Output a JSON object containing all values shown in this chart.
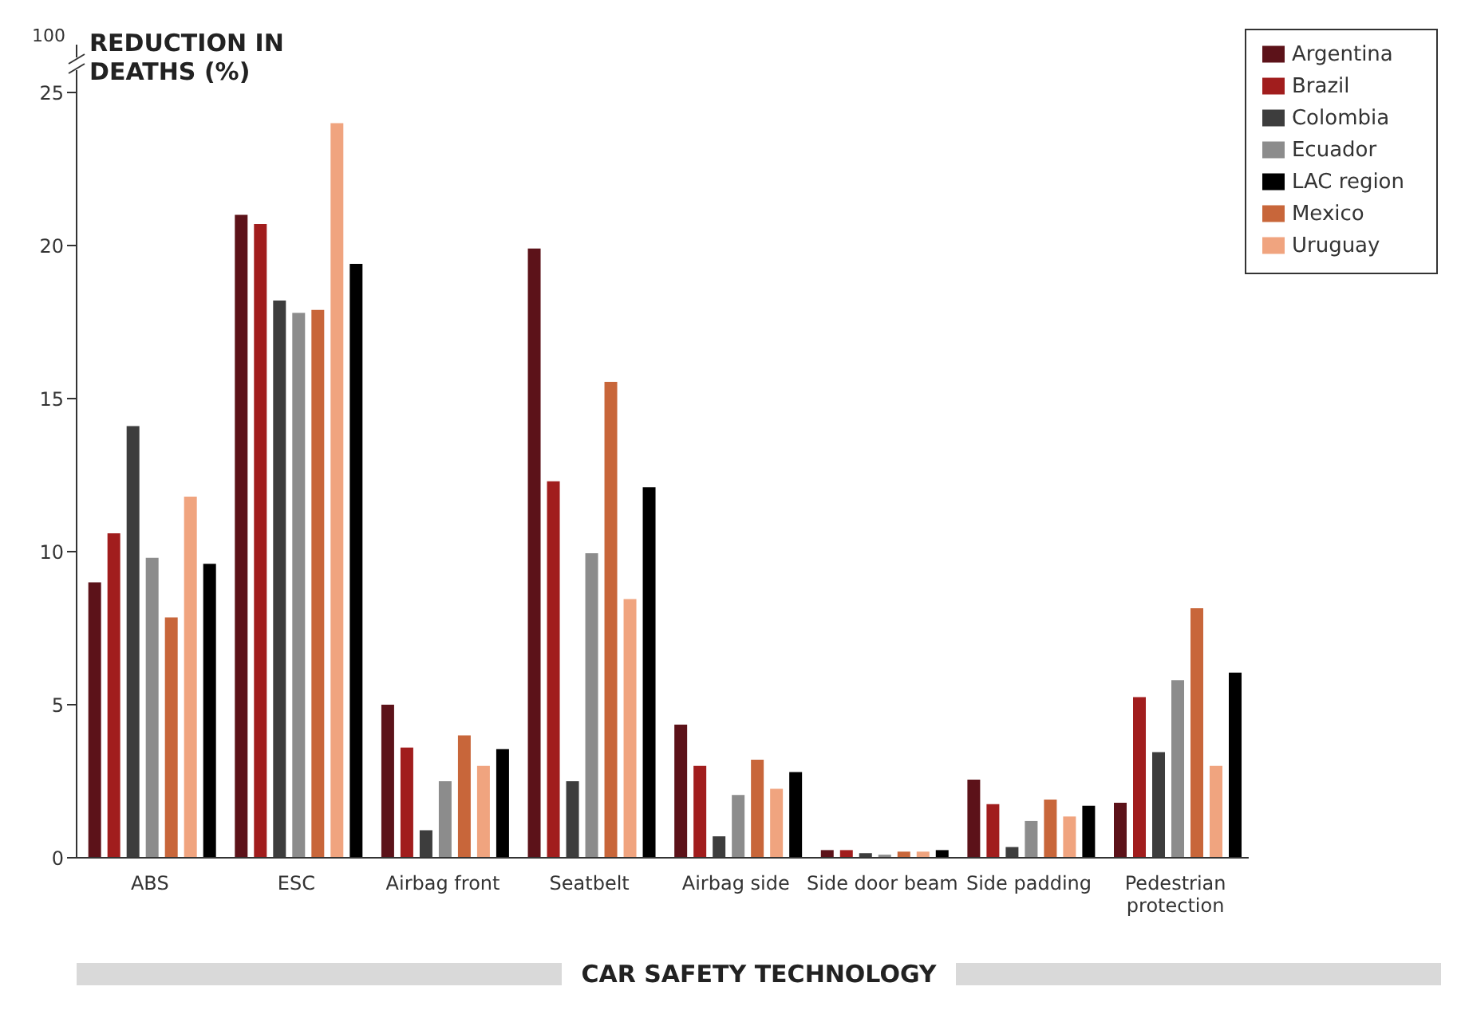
{
  "chart_data": {
    "type": "bar",
    "ylabel": "REDUCTION IN DEATHS (%)",
    "xlabel": "CAR SAFETY TECHNOLOGY",
    "categories": [
      "ABS",
      "ESC",
      "Airbag front",
      "Seatbelt",
      "Airbag side",
      "Side door beam",
      "Side padding",
      "Pedestrian protection"
    ],
    "series": [
      {
        "name": "Argentina",
        "color": "#5c1219",
        "values": [
          9.0,
          21.0,
          5.0,
          19.9,
          4.35,
          0.25,
          2.55,
          1.8
        ]
      },
      {
        "name": "Brazil",
        "color": "#a11d1d",
        "values": [
          10.6,
          20.7,
          3.6,
          12.3,
          3.0,
          0.25,
          1.75,
          5.25
        ]
      },
      {
        "name": "Colombia",
        "color": "#3d3d3d",
        "values": [
          14.1,
          18.2,
          0.9,
          2.5,
          0.7,
          0.15,
          0.35,
          3.45
        ]
      },
      {
        "name": "Ecuador",
        "color": "#8c8c8c",
        "values": [
          9.8,
          17.8,
          2.5,
          9.95,
          2.05,
          0.1,
          1.2,
          5.8
        ]
      },
      {
        "name": "Mexico",
        "color": "#c8663a",
        "values": [
          7.85,
          17.9,
          4.0,
          15.55,
          3.2,
          0.2,
          1.9,
          8.15
        ]
      },
      {
        "name": "Uruguay",
        "color": "#f0a47f",
        "values": [
          11.8,
          24.0,
          3.0,
          8.45,
          2.25,
          0.2,
          1.35,
          3.0
        ]
      },
      {
        "name": "LAC region",
        "color": "#000000",
        "values": [
          9.6,
          19.4,
          3.55,
          12.1,
          2.8,
          0.25,
          1.7,
          6.05
        ]
      }
    ],
    "ylim": [
      0,
      25
    ],
    "yticks": [
      0,
      5,
      10,
      15,
      20,
      25
    ],
    "annotations": [
      "100"
    ],
    "grid": false,
    "legend": "top right"
  }
}
